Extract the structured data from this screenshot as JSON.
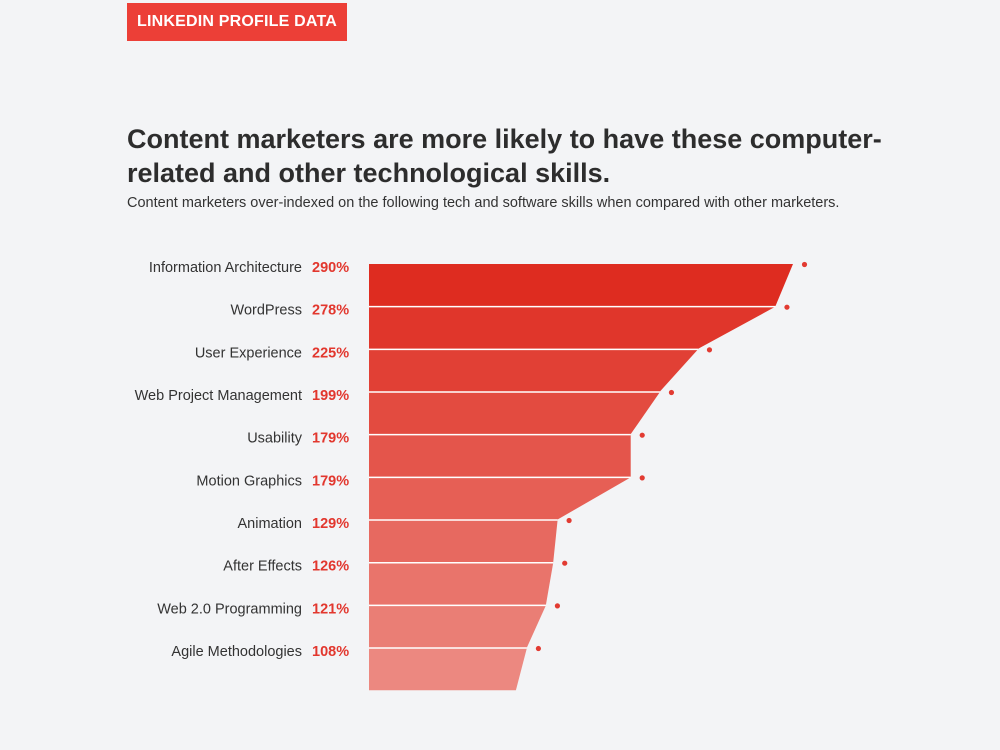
{
  "badge": "LINKEDIN PROFILE DATA",
  "title": "Content marketers are more likely to have these computer-related and other technological skills.",
  "subtitle": "Content marketers over-indexed on the following tech and software skills when compared with other marketers.",
  "colors": {
    "badge": "#ec3f37",
    "value_text": "#e2372e",
    "dot": "#e23b32",
    "band_top": "#de2c20",
    "band_bottom": "#ec8880",
    "separator": "#ffffff"
  },
  "chart_data": {
    "type": "area",
    "orientation": "horizontal",
    "title": "Content marketers are more likely to have these computer-related and other technological skills.",
    "subtitle": "Content marketers over-indexed on the following tech and software skills when compared with other marketers.",
    "categories": [
      "Information Architecture",
      "WordPress",
      "User Experience",
      "Web Project Management",
      "Usability",
      "Motion Graphics",
      "Animation",
      "After Effects",
      "Web 2.0 Programming",
      "Agile Methodologies"
    ],
    "values": [
      290,
      278,
      225,
      199,
      179,
      179,
      129,
      126,
      121,
      108
    ],
    "value_labels": [
      "290%",
      "278%",
      "225%",
      "199%",
      "179%",
      "179%",
      "129%",
      "126%",
      "121%",
      "108%"
    ],
    "unit": "%",
    "xlim": [
      0,
      290
    ],
    "grid": false,
    "legend": "none"
  }
}
